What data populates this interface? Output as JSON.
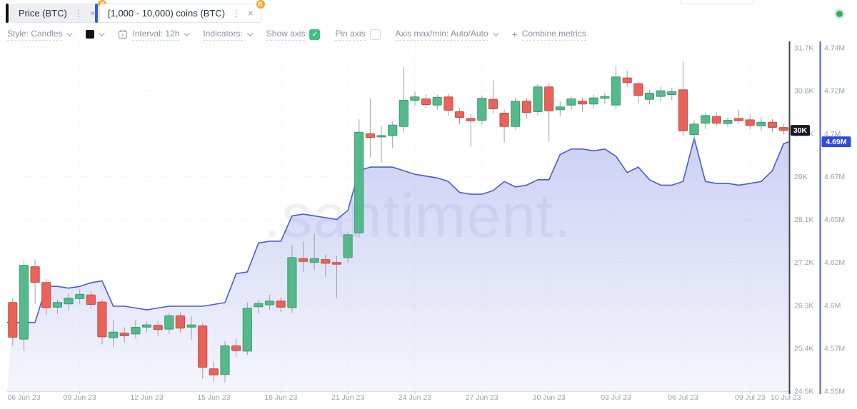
{
  "header": {
    "kebab_glyph": "⋮",
    "close_glyph": "×",
    "badge_glyph": "B",
    "badge_color": "#f2a02e",
    "status_dot_color": "#2fae61",
    "metrics": [
      {
        "name": "Price (BTC)",
        "bar_color": "#0c0d11",
        "bg": "#edeff3"
      },
      {
        "name": "[1,000 - 10,000) coins (BTC)",
        "bar_color": "#3f56e0",
        "bg": "#ffffff"
      }
    ]
  },
  "toolbar": {
    "style_label": "Style: Candles",
    "swatch_color": "#111111",
    "interval_label": "Interval: 12h",
    "indicators_label": "Indicators:",
    "show_axis_label": "Show axis",
    "show_axis_checked": true,
    "pin_axis_label": "Pin axis",
    "pin_axis_checked": false,
    "axis_maxmin_label": "Axis max/min: Auto/Auto",
    "combine_plus": "+",
    "combine_label": "Combine metrics",
    "check_color": "#3fc082"
  },
  "chart": {
    "watermark": ".santiment.",
    "price_axis": {
      "ticks": [
        "31.7K",
        "30.8K",
        "29.9K",
        "29K",
        "28.1K",
        "27.2K",
        "26.3K",
        "25.4K",
        "24.5K"
      ],
      "badge": "30K",
      "badge_bg": "#17191f",
      "line_color": "#43464d"
    },
    "metric_axis": {
      "ticks": [
        "4.74M",
        "4.72M",
        "4.7M",
        "4.67M",
        "4.65M",
        "4.62M",
        "4.6M",
        "4.57M",
        "4.55M"
      ],
      "badge": "4.69M",
      "badge_bg": "#2f4bdc",
      "line_color": "#4c5bd4"
    },
    "x_ticks": [
      {
        "i": 1,
        "label": "06 Jun 23"
      },
      {
        "i": 6,
        "label": "09 Jun 23"
      },
      {
        "i": 12,
        "label": "12 Jun 23"
      },
      {
        "i": 18,
        "label": "15 Jun 23"
      },
      {
        "i": 24,
        "label": "18 Jun 23"
      },
      {
        "i": 30,
        "label": "21 Jun 23"
      },
      {
        "i": 36,
        "label": "24 Jun 23"
      },
      {
        "i": 42,
        "label": "27 Jun 23"
      },
      {
        "i": 48,
        "label": "30 Jun 23"
      },
      {
        "i": 54,
        "label": "03 Jul 23"
      },
      {
        "i": 60,
        "label": "06 Jul 23"
      },
      {
        "i": 66,
        "label": "09 Jul 23"
      },
      {
        "i": 69.2,
        "label": "10 Jul 23"
      }
    ]
  },
  "chart_data": {
    "type": "candlestick+area",
    "interval": "12h",
    "x_range": [
      "05 Jun 23",
      "10 Jul 23"
    ],
    "price_ylim": [
      24.5,
      31.7
    ],
    "metric_ylim": [
      4.55,
      4.74
    ],
    "grid": true,
    "colors": {
      "up": "#56b98b",
      "up_border": "#359e71",
      "down": "#e9635b",
      "down_border": "#c74d45",
      "wick": "#9ba1ad",
      "area_line": "#4c5bd4",
      "area_fill_rgb": "108,119,222"
    },
    "series": [
      {
        "name": "Price (BTC)",
        "type": "candlestick",
        "unit": "USD thousands",
        "ohlc": [
          [
            26.36,
            26.45,
            25.45,
            25.63
          ],
          [
            25.59,
            27.24,
            25.34,
            27.14
          ],
          [
            27.11,
            27.26,
            26.33,
            26.78
          ],
          [
            26.78,
            26.85,
            26.1,
            26.25
          ],
          [
            26.26,
            26.42,
            26.12,
            26.36
          ],
          [
            26.33,
            26.55,
            26.2,
            26.45
          ],
          [
            26.44,
            26.64,
            26.33,
            26.53
          ],
          [
            26.52,
            26.6,
            26.22,
            26.32
          ],
          [
            26.37,
            26.42,
            25.48,
            25.64
          ],
          [
            25.62,
            26.0,
            25.42,
            25.74
          ],
          [
            25.72,
            25.84,
            25.52,
            25.66
          ],
          [
            25.7,
            26.0,
            25.6,
            25.84
          ],
          [
            25.84,
            25.96,
            25.73,
            25.89
          ],
          [
            25.88,
            25.97,
            25.66,
            25.79
          ],
          [
            25.8,
            26.14,
            25.71,
            26.08
          ],
          [
            26.08,
            26.15,
            25.73,
            25.82
          ],
          [
            25.84,
            26.08,
            25.58,
            25.89
          ],
          [
            25.87,
            25.93,
            24.76,
            25.0
          ],
          [
            24.97,
            25.12,
            24.7,
            24.84
          ],
          [
            24.85,
            25.55,
            24.68,
            25.45
          ],
          [
            25.45,
            25.6,
            25.22,
            25.35
          ],
          [
            25.34,
            26.36,
            25.26,
            26.24
          ],
          [
            26.27,
            26.42,
            26.13,
            26.34
          ],
          [
            26.31,
            26.52,
            26.2,
            26.39
          ],
          [
            26.39,
            26.47,
            26.16,
            26.26
          ],
          [
            26.25,
            27.56,
            26.14,
            27.3
          ],
          [
            27.28,
            27.64,
            27.0,
            27.22
          ],
          [
            27.2,
            27.8,
            27.04,
            27.28
          ],
          [
            27.26,
            27.36,
            26.9,
            27.18
          ],
          [
            27.2,
            27.34,
            26.45,
            27.16
          ],
          [
            27.3,
            27.84,
            27.18,
            27.78
          ],
          [
            27.82,
            30.2,
            27.72,
            29.93
          ],
          [
            29.9,
            30.64,
            29.4,
            29.82
          ],
          [
            29.84,
            30.06,
            29.3,
            29.86
          ],
          [
            29.86,
            30.16,
            29.6,
            30.08
          ],
          [
            30.05,
            31.3,
            29.92,
            30.6
          ],
          [
            30.6,
            30.78,
            30.48,
            30.67
          ],
          [
            30.63,
            30.72,
            30.44,
            30.51
          ],
          [
            30.5,
            30.72,
            30.4,
            30.66
          ],
          [
            30.67,
            30.74,
            30.28,
            30.39
          ],
          [
            30.36,
            30.44,
            30.1,
            30.24
          ],
          [
            30.22,
            30.32,
            29.62,
            30.17
          ],
          [
            30.18,
            30.7,
            30.08,
            30.64
          ],
          [
            30.62,
            31.02,
            30.32,
            30.42
          ],
          [
            30.33,
            30.4,
            29.72,
            30.05
          ],
          [
            30.05,
            30.65,
            29.98,
            30.58
          ],
          [
            30.58,
            30.65,
            30.22,
            30.34
          ],
          [
            30.36,
            30.94,
            30.28,
            30.88
          ],
          [
            30.88,
            30.96,
            29.74,
            30.38
          ],
          [
            30.4,
            30.58,
            30.26,
            30.46
          ],
          [
            30.5,
            30.68,
            30.4,
            30.63
          ],
          [
            30.58,
            30.66,
            30.36,
            30.52
          ],
          [
            30.52,
            30.72,
            30.42,
            30.65
          ],
          [
            30.64,
            30.76,
            30.52,
            30.68
          ],
          [
            30.5,
            31.32,
            30.42,
            31.09
          ],
          [
            31.07,
            31.22,
            30.88,
            30.97
          ],
          [
            30.95,
            31.0,
            30.54,
            30.7
          ],
          [
            30.62,
            30.82,
            30.52,
            30.75
          ],
          [
            30.68,
            30.88,
            30.58,
            30.8
          ],
          [
            30.72,
            30.86,
            30.6,
            30.78
          ],
          [
            30.82,
            31.42,
            29.85,
            29.96
          ],
          [
            29.88,
            30.18,
            29.68,
            30.1
          ],
          [
            30.12,
            30.34,
            30.0,
            30.28
          ],
          [
            30.26,
            30.34,
            30.06,
            30.12
          ],
          [
            30.11,
            30.24,
            30.04,
            30.18
          ],
          [
            30.22,
            30.4,
            30.1,
            30.17
          ],
          [
            30.19,
            30.3,
            29.99,
            30.07
          ],
          [
            30.06,
            30.25,
            29.96,
            30.14
          ],
          [
            30.14,
            30.21,
            29.93,
            30.03
          ],
          [
            30.03,
            30.1,
            29.88,
            29.97
          ]
        ]
      },
      {
        "name": "[1,000 - 10,000) coins (BTC)",
        "type": "area",
        "unit": "BTC millions",
        "values": [
          4.588,
          4.588,
          4.588,
          4.608,
          4.608,
          4.607,
          4.608,
          4.61,
          4.611,
          4.597,
          4.597,
          4.596,
          4.595,
          4.596,
          4.597,
          4.597,
          4.597,
          4.597,
          4.598,
          4.599,
          4.615,
          4.616,
          4.632,
          4.633,
          4.633,
          4.647,
          4.648,
          4.647,
          4.646,
          4.645,
          4.65,
          4.672,
          4.674,
          4.674,
          4.674,
          4.672,
          4.67,
          4.669,
          4.668,
          4.666,
          4.66,
          4.659,
          4.659,
          4.661,
          4.666,
          4.663,
          4.664,
          4.667,
          4.667,
          4.681,
          4.684,
          4.684,
          4.683,
          4.684,
          4.68,
          4.671,
          4.674,
          4.667,
          4.664,
          4.664,
          4.666,
          4.69,
          4.666,
          4.665,
          4.665,
          4.664,
          4.665,
          4.666,
          4.672,
          4.687
        ]
      }
    ]
  }
}
